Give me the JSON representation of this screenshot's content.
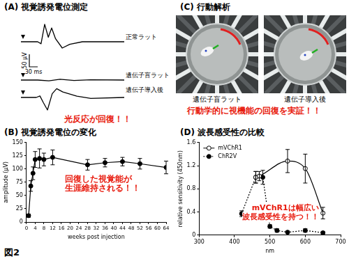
{
  "figure_label": "図2",
  "panel_a": {
    "title": "(A) 視覚誘発電位測定",
    "scale_bar": {
      "amplitude": 50,
      "amplitude_label": "50 μV",
      "time": 30,
      "time_label": "30 ms"
    },
    "traces": [
      {
        "name": "正常ラット",
        "t": [
          0,
          60,
          72,
          85,
          98,
          110,
          124,
          148,
          175,
          220,
          370
        ],
        "values": [
          0,
          0,
          -8,
          70,
          18,
          55,
          12,
          -25,
          -10,
          0,
          0
        ]
      },
      {
        "name": "遺伝子盲ラット",
        "t": [
          0,
          60,
          100,
          140,
          190,
          250,
          370
        ],
        "values": [
          0,
          0,
          -3,
          3,
          -2,
          1,
          0
        ]
      },
      {
        "name": "遺伝子導入後",
        "t": [
          0,
          55,
          68,
          80,
          95,
          112,
          128,
          150,
          200,
          250,
          370
        ],
        "values": [
          0,
          0,
          6,
          -20,
          -50,
          15,
          35,
          22,
          5,
          -4,
          0
        ]
      }
    ],
    "annotation": "光反応が回復！！"
  },
  "panel_c": {
    "title": "(C) 行動解析",
    "images": [
      "遺伝子盲ラット",
      "遺伝子導入後"
    ],
    "annotation": "行動学的に視機能の回復を実証！！"
  },
  "chart_data": [
    {
      "type": "line",
      "title": "(B) 視覚誘発電位の変化",
      "x_label": "weeks post injection",
      "y_label": "amplitude (μV)",
      "x": [
        1,
        2,
        3,
        4,
        6,
        8,
        12,
        28,
        36,
        44,
        52,
        64
      ],
      "values": [
        12,
        68,
        92,
        118,
        120,
        118,
        122,
        108,
        112,
        114,
        110,
        103
      ],
      "errors": [
        3,
        10,
        12,
        15,
        18,
        12,
        14,
        10,
        8,
        8,
        10,
        12
      ],
      "color": "#000000",
      "marker": "circle",
      "line_style": "solid",
      "xlim": [
        0,
        64
      ],
      "xticks": [
        0,
        4,
        8,
        12,
        16,
        20,
        24,
        28,
        32,
        36,
        40,
        44,
        48,
        52,
        56,
        60,
        64
      ],
      "ylim": [
        0,
        150
      ],
      "yticks": [
        0,
        25,
        50,
        75,
        100,
        125,
        150
      ],
      "grid": false,
      "annotation": [
        "回復した視覚能が",
        "生涯維持される！！"
      ]
    },
    {
      "type": "line",
      "title": "(D) 波長感受性の比較",
      "x_label": "nm",
      "y_label": "relative sensitivity (450nm)",
      "series": [
        {
          "name": "mVChR1",
          "color": "#000000",
          "marker": "open_circle",
          "line_style": "smooth",
          "x": [
            460,
            470,
            550,
            600,
            650
          ],
          "values": [
            1.0,
            1.02,
            1.28,
            1.15,
            0.38
          ],
          "errors": [
            0.1,
            0.08,
            0.2,
            0.25,
            0.1
          ]
        },
        {
          "name": "ChR2V",
          "color": "#000000",
          "marker": "circle",
          "line_style": "dotted",
          "x": [
            420,
            460,
            480,
            500,
            520,
            550,
            600,
            650
          ],
          "values": [
            0.37,
            1.0,
            1.0,
            0.15,
            0.08,
            0.05,
            0.08,
            0.04
          ],
          "errors": [
            0.05,
            0.1,
            0.12,
            0.03,
            0.03,
            0.02,
            0.03,
            0.02
          ]
        }
      ],
      "xlim": [
        300,
        700
      ],
      "xticks": [
        300,
        400,
        500,
        600,
        700
      ],
      "ylim": [
        0,
        1.6
      ],
      "yticks": [
        0,
        0.4,
        0.8,
        1.2,
        1.6
      ],
      "grid": false,
      "legend": "upper left",
      "annotation": [
        "mVChR1は幅広い",
        "波長感受性を持つ！！"
      ]
    }
  ]
}
